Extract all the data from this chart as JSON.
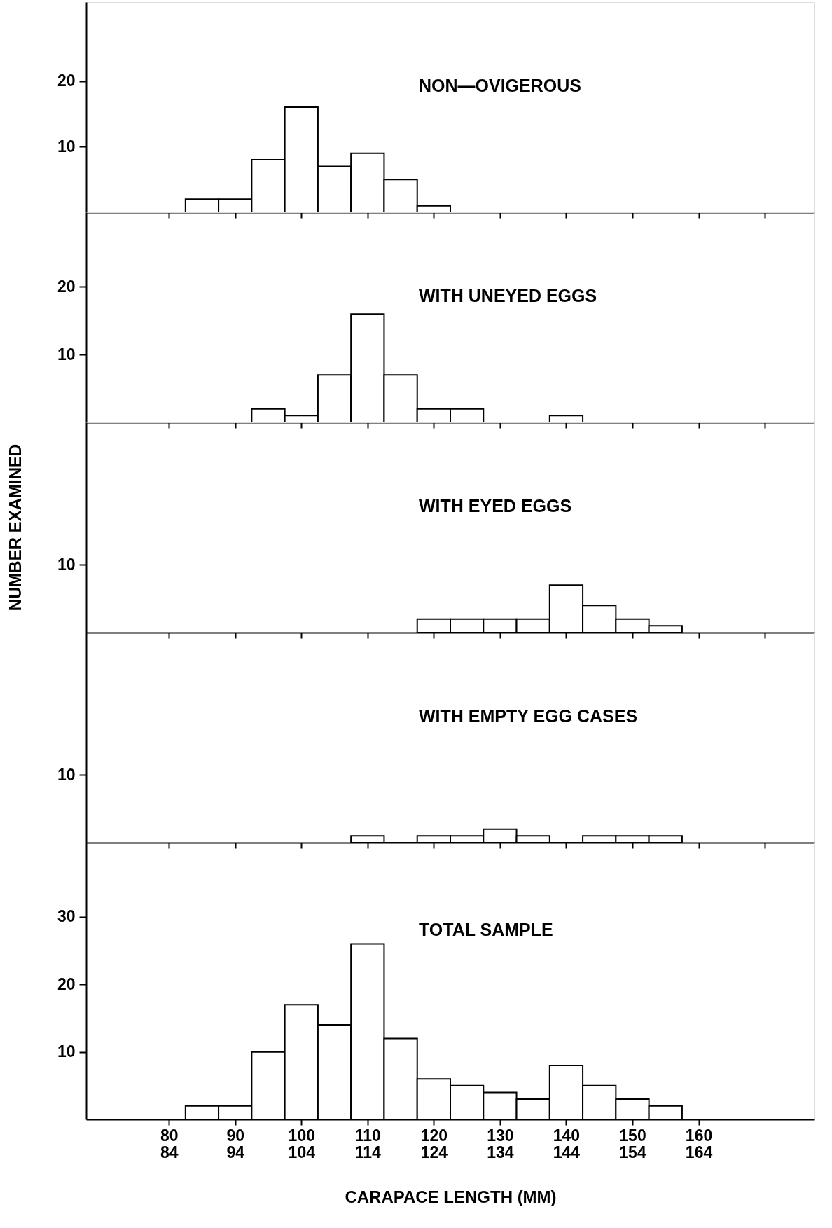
{
  "chart_data": [
    {
      "type": "bar",
      "title": "NON—OVIGEROUS",
      "categories": [
        null,
        null,
        null,
        null,
        null,
        null,
        null,
        null,
        null,
        null,
        null,
        null,
        null,
        null,
        null,
        null,
        null,
        null,
        null,
        null,
        null,
        null
      ],
      "values": [
        null,
        null,
        null,
        2,
        2,
        8,
        16,
        7,
        9,
        5,
        1,
        null,
        null,
        null,
        null,
        null,
        null,
        null,
        null,
        null,
        null,
        null
      ],
      "ylim": [
        0,
        32
      ],
      "yticks": [
        10,
        20
      ],
      "tick_labels": "y",
      "grid": false
    },
    {
      "type": "bar",
      "title": "WITH UNEYED EGGS",
      "categories": [
        null,
        null,
        null,
        null,
        null,
        null,
        null,
        null,
        null,
        null,
        null,
        null,
        null,
        null,
        null,
        null,
        null,
        null,
        null,
        null,
        null,
        null
      ],
      "values": [
        null,
        null,
        null,
        null,
        null,
        2,
        1,
        7,
        16,
        7,
        2,
        2,
        0,
        0,
        1,
        null,
        null,
        null,
        null,
        null,
        null,
        null
      ],
      "ylim": [
        0,
        31
      ],
      "yticks": [
        10,
        20
      ],
      "tick_labels": "y",
      "grid": false
    },
    {
      "type": "bar",
      "title": "WITH EYED EGGS",
      "ylabel": "NUMBER EXAMINED",
      "categories": [
        null,
        null,
        null,
        null,
        null,
        null,
        null,
        null,
        null,
        null,
        null,
        null,
        null,
        null,
        null,
        null,
        null,
        null,
        null,
        null,
        null,
        null
      ],
      "values": [
        null,
        null,
        null,
        null,
        null,
        null,
        null,
        null,
        null,
        null,
        2,
        2,
        2,
        2,
        7,
        4,
        2,
        1,
        null,
        null,
        null,
        null
      ],
      "ylim": [
        0,
        31
      ],
      "yticks": [
        10
      ],
      "tick_labels": "y",
      "grid": false
    },
    {
      "type": "bar",
      "title": "WITH EMPTY EGG CASES",
      "categories": [
        null,
        null,
        null,
        null,
        null,
        null,
        null,
        null,
        null,
        null,
        null,
        null,
        null,
        null,
        null,
        null,
        null,
        null,
        null,
        null,
        null,
        null
      ],
      "values": [
        null,
        null,
        null,
        null,
        null,
        null,
        null,
        null,
        1,
        0,
        1,
        1,
        2,
        1,
        0,
        1,
        1,
        1,
        null,
        null,
        null,
        null
      ],
      "ylim": [
        0,
        31
      ],
      "yticks": [
        10
      ],
      "tick_labels": "y",
      "grid": false
    },
    {
      "type": "bar",
      "title": "TOTAL SAMPLE",
      "xlabel": "CARAPACE  LENGTH (MM)",
      "categories": [
        null,
        null,
        "80\n84",
        null,
        "90\n94",
        null,
        "100\n104",
        null,
        "110\n114",
        null,
        "120\n124",
        null,
        "130\n134",
        null,
        "140\n144",
        null,
        "150\n154",
        null,
        "160\n164",
        null,
        null,
        null
      ],
      "values": [
        null,
        null,
        null,
        2,
        2,
        10,
        17,
        14,
        26,
        12,
        6,
        5,
        4,
        3,
        8,
        5,
        3,
        2,
        null,
        null,
        null,
        null
      ],
      "ylim": [
        0,
        41
      ],
      "yticks": [
        10,
        20,
        30
      ],
      "grid": false
    }
  ]
}
